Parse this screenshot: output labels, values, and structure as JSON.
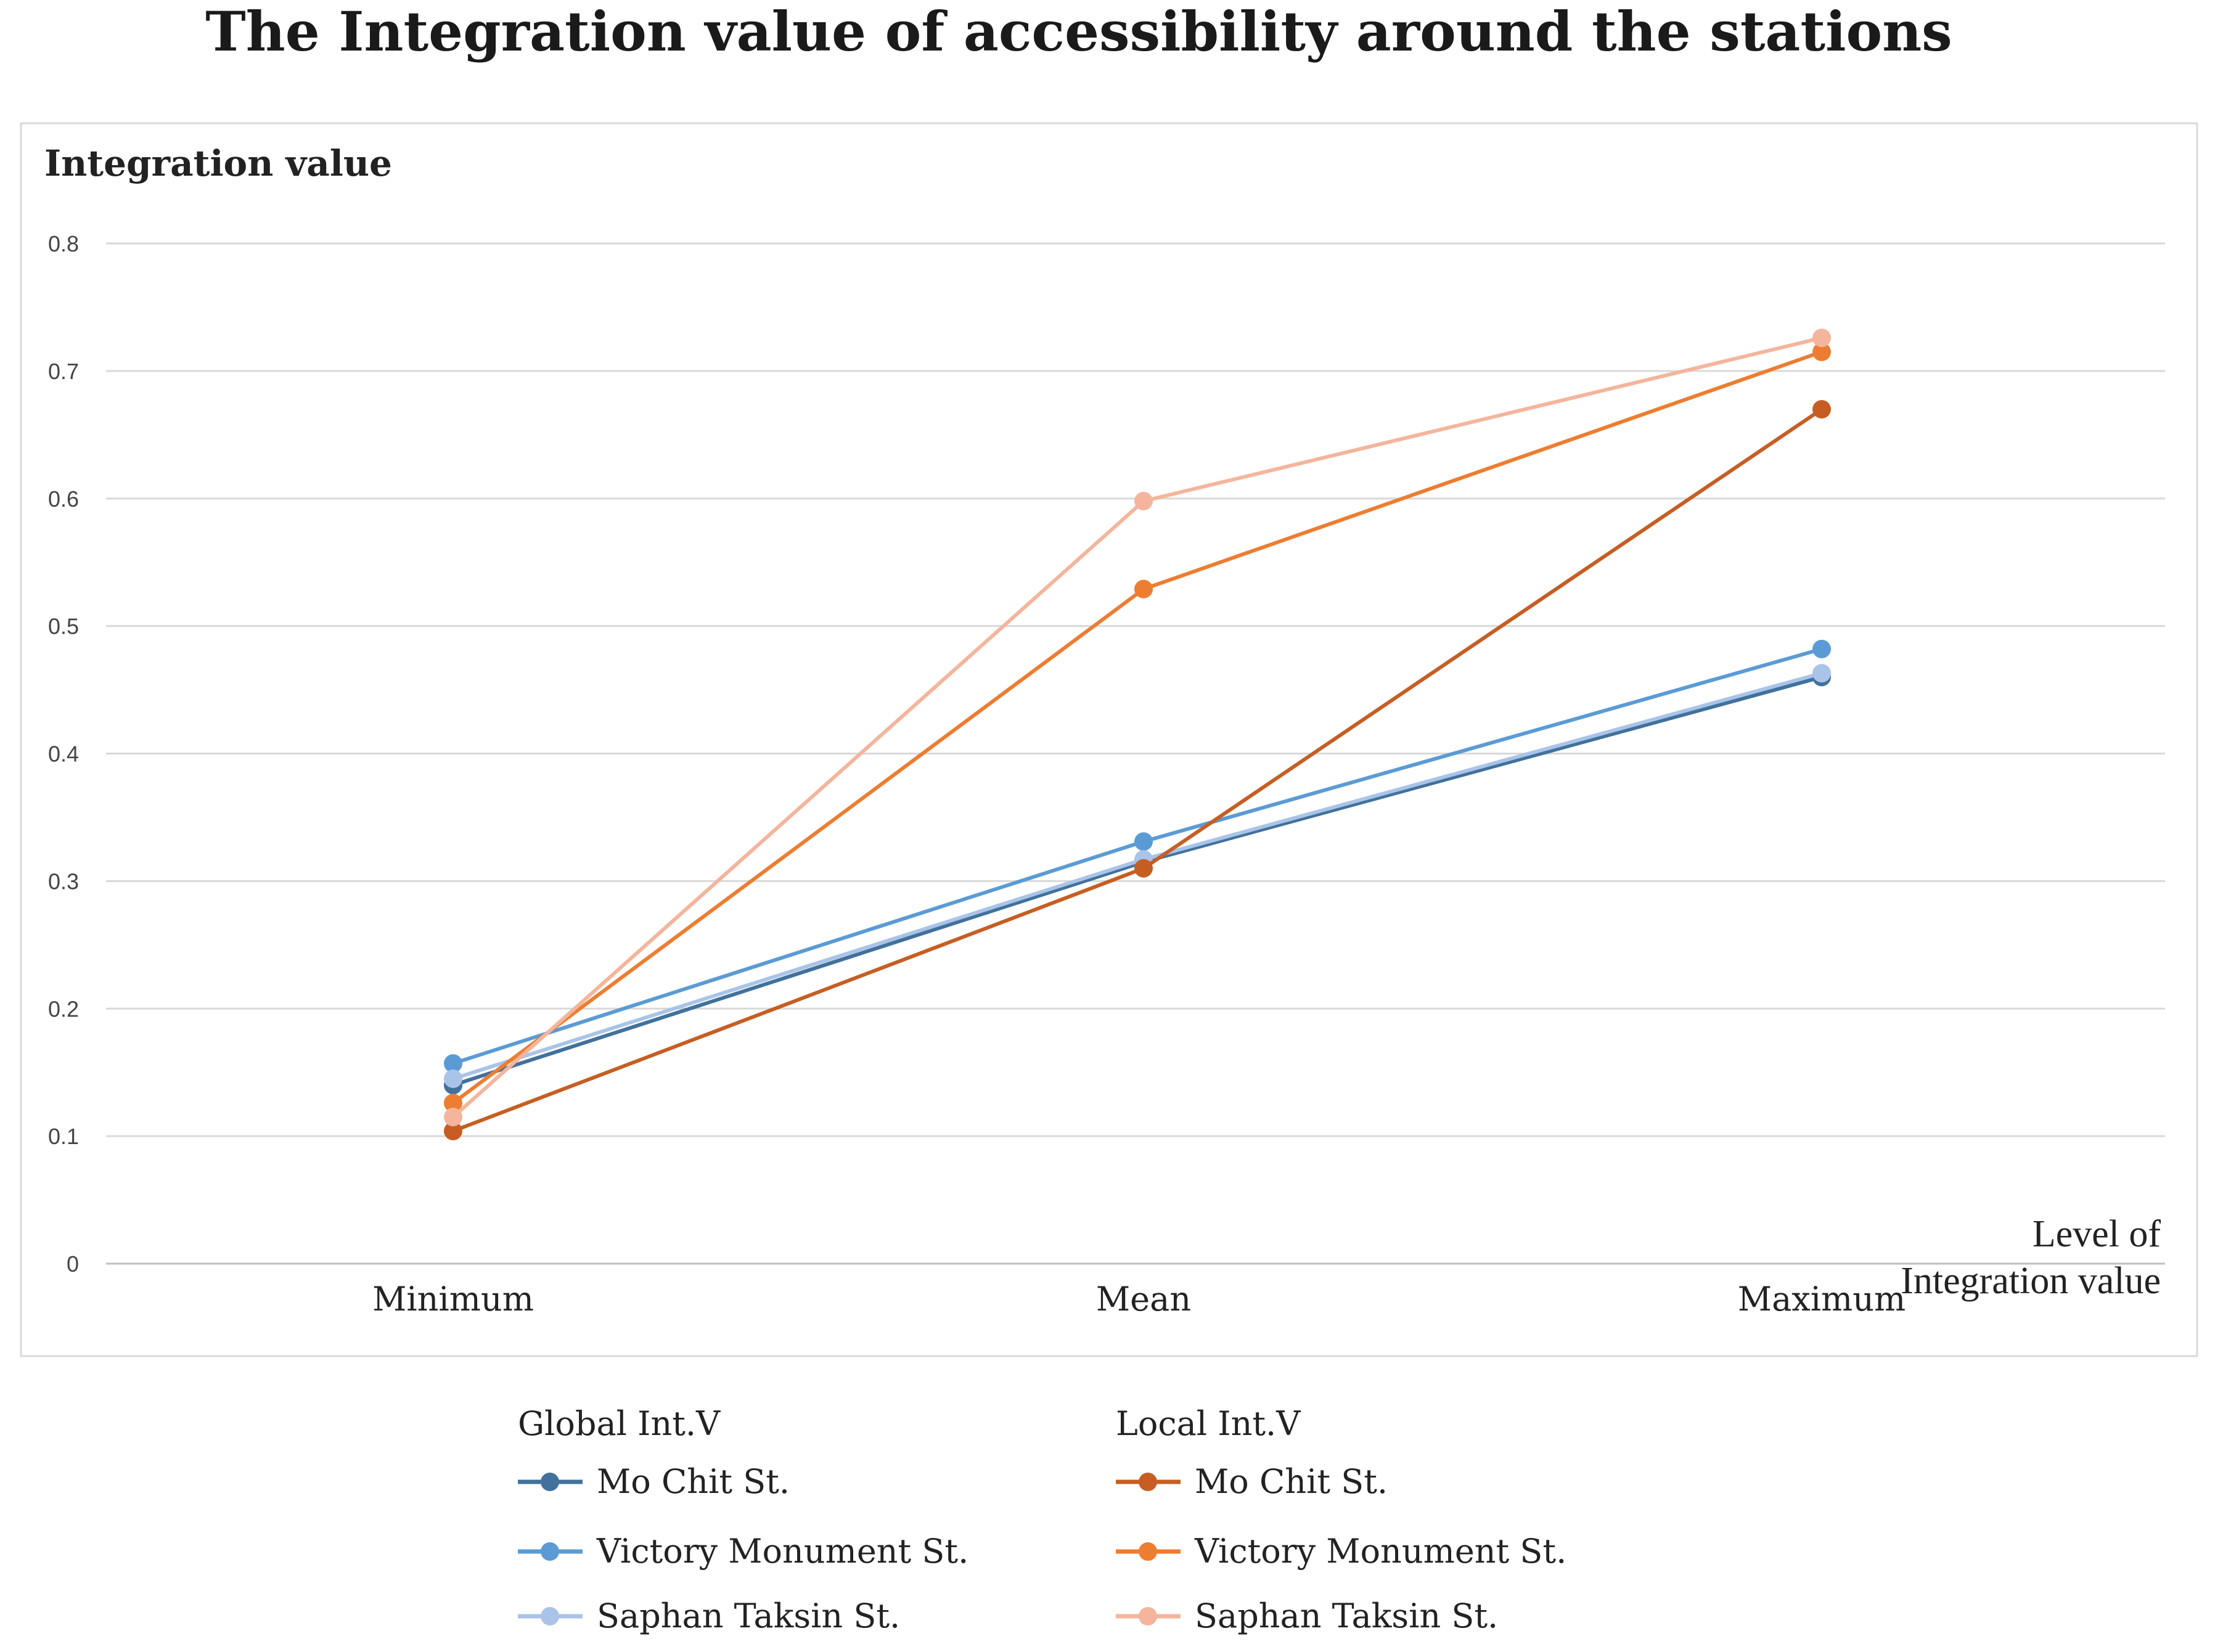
{
  "chart_data": {
    "type": "line",
    "title": "The Integration value of accessibility around the stations",
    "ylabel": "Integration value",
    "xlabel_lines": [
      "Level of",
      "Integration value"
    ],
    "categories": [
      "Minimum",
      "Mean",
      "Maximum"
    ],
    "ylim": [
      0,
      0.8
    ],
    "yticks": [
      "0",
      "0.1",
      "0.2",
      "0.3",
      "0.4",
      "0.5",
      "0.6",
      "0.7",
      "0.8"
    ],
    "grid": true,
    "legend_groups": [
      {
        "heading": "Global Int.V",
        "series_indexes": [
          0,
          1,
          2
        ]
      },
      {
        "heading": "Local Int.V",
        "series_indexes": [
          3,
          4,
          5
        ]
      }
    ],
    "series": [
      {
        "name": "Mo Chit St.",
        "group": "Global Int.V",
        "color": "#41719C",
        "values": [
          0.14,
          0.315,
          0.46
        ]
      },
      {
        "name": "Victory Monument St.",
        "group": "Global Int.V",
        "color": "#5B9BD5",
        "values": [
          0.157,
          0.331,
          0.482
        ]
      },
      {
        "name": "Saphan Taksin St.",
        "group": "Global Int.V",
        "color": "#A9C4E8",
        "values": [
          0.145,
          0.317,
          0.463
        ]
      },
      {
        "name": "Mo Chit St.",
        "group": "Local Int.V",
        "color": "#C65E23",
        "values": [
          0.104,
          0.31,
          0.67
        ]
      },
      {
        "name": "Victory Monument St.",
        "group": "Local Int.V",
        "color": "#ED7D31",
        "values": [
          0.126,
          0.529,
          0.715
        ]
      },
      {
        "name": "Saphan Taksin St.",
        "group": "Local Int.V",
        "color": "#F4B59C",
        "values": [
          0.115,
          0.598,
          0.726
        ]
      }
    ]
  }
}
